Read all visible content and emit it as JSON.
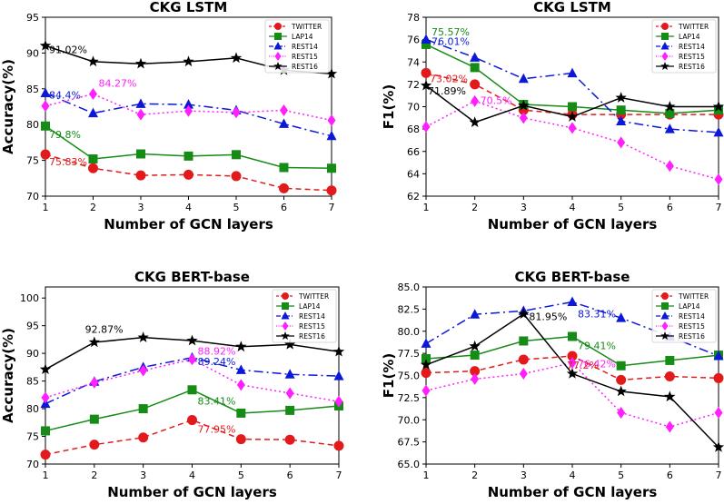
{
  "figure": {
    "layers": [
      1,
      2,
      3,
      4,
      5,
      6,
      7
    ],
    "legend_entries": [
      "TWITTER",
      "LAP14",
      "REST14",
      "REST15",
      "REST16"
    ]
  },
  "colors": {
    "TWITTER": "#e31a1c",
    "LAP14": "#168b16",
    "REST14": "#0b18d8",
    "REST15": "#ff1fff",
    "REST16": "#000000"
  },
  "chart_data": [
    {
      "type": "line",
      "title": "CKG LSTM",
      "xlabel": "Number of GCN layers",
      "ylabel": "Accuracy(%)",
      "xlim": [
        1,
        7
      ],
      "ylim": [
        70,
        95
      ],
      "yticks": [
        70,
        75,
        80,
        85,
        90,
        95
      ],
      "ytick_labels": [
        "70",
        "75",
        "80",
        "85",
        "90",
        "95"
      ],
      "legend_position": "top-right",
      "x": [
        1,
        2,
        3,
        4,
        5,
        6,
        7
      ],
      "series": [
        {
          "name": "TWITTER",
          "values": [
            75.83,
            73.9,
            72.9,
            73.0,
            72.8,
            71.1,
            70.8
          ]
        },
        {
          "name": "LAP14",
          "values": [
            79.8,
            75.2,
            75.9,
            75.6,
            75.8,
            74.0,
            73.9
          ]
        },
        {
          "name": "REST14",
          "values": [
            84.4,
            81.6,
            82.9,
            82.8,
            82.0,
            80.1,
            78.4
          ]
        },
        {
          "name": "REST15",
          "values": [
            82.6,
            84.27,
            81.4,
            81.9,
            81.7,
            82.0,
            80.6
          ]
        },
        {
          "name": "REST16",
          "values": [
            91.02,
            88.8,
            88.5,
            88.8,
            89.3,
            87.6,
            87.1
          ]
        }
      ],
      "annotations": [
        {
          "text": "91.02%",
          "series": "REST16",
          "x": 1,
          "y": 91.02
        },
        {
          "text": "84.27%",
          "series": "REST15",
          "x": 2,
          "y": 84.27
        },
        {
          "text": "84.4%",
          "series": "REST14",
          "x": 1,
          "y": 84.4
        },
        {
          "text": "79.8%",
          "series": "LAP14",
          "x": 1,
          "y": 79.8
        },
        {
          "text": "75.83%",
          "series": "TWITTER",
          "x": 1,
          "y": 75.83
        }
      ]
    },
    {
      "type": "line",
      "title": "CKG LSTM",
      "xlabel": "Number of GCN layers",
      "ylabel": "F1(%)",
      "xlim": [
        1,
        7
      ],
      "ylim": [
        62,
        78
      ],
      "yticks": [
        62,
        64,
        66,
        68,
        70,
        72,
        74,
        76,
        78
      ],
      "ytick_labels": [
        "62",
        "64",
        "66",
        "68",
        "70",
        "72",
        "74",
        "76",
        "78"
      ],
      "legend_position": "top-right",
      "x": [
        1,
        2,
        3,
        4,
        5,
        6,
        7
      ],
      "series": [
        {
          "name": "TWITTER",
          "values": [
            73.02,
            72.0,
            69.7,
            69.3,
            69.3,
            69.3,
            69.3
          ]
        },
        {
          "name": "LAP14",
          "values": [
            75.57,
            73.5,
            70.2,
            70.0,
            69.7,
            69.4,
            69.7
          ]
        },
        {
          "name": "REST14",
          "values": [
            76.01,
            74.4,
            72.5,
            73.0,
            68.7,
            68.0,
            67.7
          ]
        },
        {
          "name": "REST15",
          "values": [
            68.2,
            70.5,
            69.0,
            68.1,
            66.8,
            64.7,
            63.5
          ]
        },
        {
          "name": "REST16",
          "values": [
            71.89,
            68.6,
            70.1,
            69.1,
            70.8,
            70.0,
            70.0
          ]
        }
      ],
      "annotations": [
        {
          "text": "75.57%",
          "series": "LAP14",
          "x": 1,
          "y": 75.57
        },
        {
          "text": "76.01%",
          "series": "REST14",
          "x": 1,
          "y": 76.01
        },
        {
          "text": "73.02%",
          "series": "TWITTER",
          "x": 1,
          "y": 73.02
        },
        {
          "text": "71.89%",
          "series": "REST16",
          "x": 1,
          "y": 71.89
        },
        {
          "text": "70.5%",
          "series": "REST15",
          "x": 2,
          "y": 70.5
        }
      ]
    },
    {
      "type": "line",
      "title": "CKG BERT-base",
      "xlabel": "Number of GCN layers",
      "ylabel": "Accuracy(%)",
      "xlim": [
        1,
        7
      ],
      "ylim": [
        70,
        102
      ],
      "yticks": [
        70,
        75,
        80,
        85,
        90,
        95,
        100
      ],
      "ytick_labels": [
        "70",
        "75",
        "80",
        "85",
        "90",
        "95",
        "100"
      ],
      "legend_position": "top-right",
      "x": [
        1,
        2,
        3,
        4,
        5,
        6,
        7
      ],
      "series": [
        {
          "name": "TWITTER",
          "values": [
            71.7,
            73.5,
            74.8,
            77.95,
            74.5,
            74.4,
            73.3
          ]
        },
        {
          "name": "LAP14",
          "values": [
            76.0,
            78.1,
            80.0,
            83.41,
            79.2,
            79.7,
            80.5
          ]
        },
        {
          "name": "REST14",
          "values": [
            80.9,
            84.9,
            87.5,
            89.24,
            87.0,
            86.2,
            85.9
          ]
        },
        {
          "name": "REST15",
          "values": [
            82.0,
            84.7,
            86.9,
            88.92,
            84.3,
            82.8,
            81.3
          ]
        },
        {
          "name": "REST16",
          "values": [
            87.1,
            92.0,
            92.87,
            92.3,
            91.2,
            91.6,
            90.3
          ]
        }
      ],
      "annotations": [
        {
          "text": "92.87%",
          "series": "REST16",
          "x": 3,
          "y": 92.87
        },
        {
          "text": "88.92%",
          "series": "REST15",
          "x": 4,
          "y": 88.92
        },
        {
          "text": "89.24%",
          "series": "REST14",
          "x": 4,
          "y": 89.24
        },
        {
          "text": "83.41%",
          "series": "LAP14",
          "x": 4,
          "y": 83.41
        },
        {
          "text": "77.95%",
          "series": "TWITTER",
          "x": 4,
          "y": 77.95
        }
      ]
    },
    {
      "type": "line",
      "title": "CKG BERT-base",
      "xlabel": "Number of GCN layers",
      "ylabel": "F1(%)",
      "xlim": [
        1,
        7
      ],
      "ylim": [
        65,
        85
      ],
      "yticks": [
        65,
        67.5,
        70,
        72.5,
        75,
        77.5,
        80,
        82.5,
        85
      ],
      "ytick_labels": [
        "65.0",
        "67.5",
        "70.0",
        "72.5",
        "75.0",
        "77.5",
        "80.0",
        "82.5",
        "85.0"
      ],
      "legend_position": "top-right",
      "x": [
        1,
        2,
        3,
        4,
        5,
        6,
        7
      ],
      "series": [
        {
          "name": "TWITTER",
          "values": [
            75.3,
            75.5,
            76.8,
            77.2,
            74.5,
            74.9,
            74.7
          ]
        },
        {
          "name": "LAP14",
          "values": [
            76.9,
            77.3,
            78.9,
            79.41,
            76.1,
            76.7,
            77.3
          ]
        },
        {
          "name": "REST14",
          "values": [
            78.6,
            81.9,
            82.3,
            83.31,
            81.5,
            79.4,
            77.2
          ]
        },
        {
          "name": "REST15",
          "values": [
            73.3,
            74.6,
            75.2,
            76.42,
            70.8,
            69.2,
            70.8
          ]
        },
        {
          "name": "REST16",
          "values": [
            76.2,
            78.3,
            81.95,
            75.2,
            73.2,
            72.6,
            66.9
          ]
        }
      ],
      "annotations": [
        {
          "text": "81.95%",
          "series": "REST16",
          "x": 3,
          "y": 81.95
        },
        {
          "text": "83.31%",
          "series": "REST14",
          "x": 4,
          "y": 83.31
        },
        {
          "text": "79.41%",
          "series": "LAP14",
          "x": 4,
          "y": 79.41
        },
        {
          "text": "76.42%",
          "series": "REST15",
          "x": 4,
          "y": 76.42
        },
        {
          "text": "77.2%",
          "series": "TWITTER",
          "x": 4,
          "y": 77.2
        }
      ]
    }
  ]
}
